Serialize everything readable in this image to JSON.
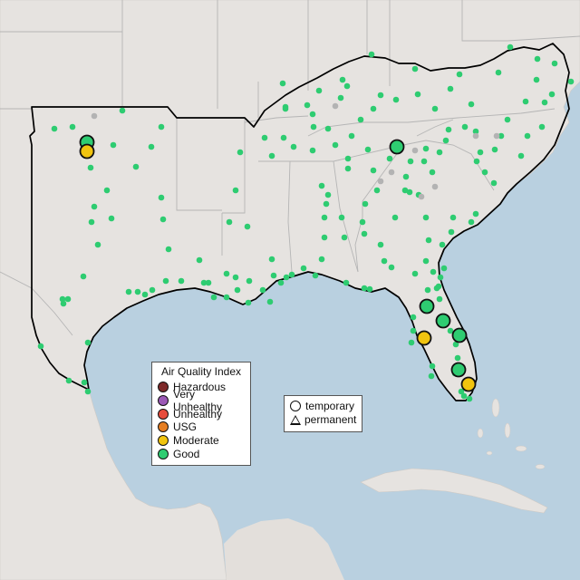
{
  "legend_aqi": {
    "title": "Air Quality Index",
    "items": [
      {
        "label": "Hazardous",
        "color": "#7e2a2a"
      },
      {
        "label": "Very Unhealthy",
        "color": "#9b59b6"
      },
      {
        "label": "Unhealthy",
        "color": "#e74c3c"
      },
      {
        "label": "USG",
        "color": "#e67e22"
      },
      {
        "label": "Moderate",
        "color": "#f1c40f"
      },
      {
        "label": "Good",
        "color": "#2ecc71"
      }
    ]
  },
  "legend_type": {
    "items": [
      {
        "label": "temporary",
        "shape": "circle-icon"
      },
      {
        "label": "permanent",
        "shape": "triangle-icon"
      }
    ]
  },
  "colors": {
    "water": "#b9d0e0",
    "land": "#e6e3e0",
    "border": "#b5b5b5",
    "outline": "#000000",
    "good": "#2ecc71",
    "moderate": "#f1c40f",
    "nodata": "#b3b3b3"
  }
}
